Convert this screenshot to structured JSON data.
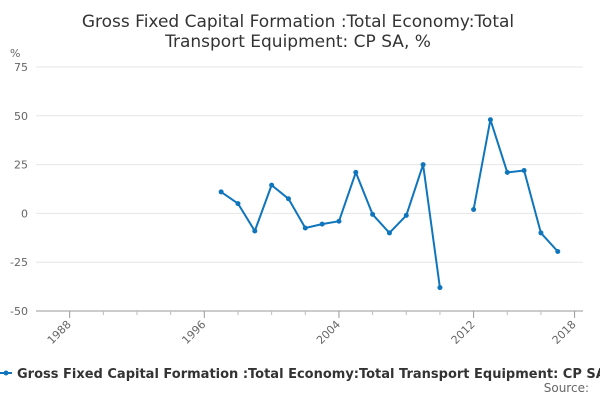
{
  "chart_data": {
    "type": "line",
    "title_lines": [
      "Gross Fixed Capital Formation :Total Economy:Total",
      "Transport Equipment: CP SA, %"
    ],
    "ylabel": "%",
    "xlabel": "",
    "xlim": [
      1986,
      2018.5
    ],
    "ylim": [
      -50,
      75
    ],
    "y_ticks": [
      75,
      50,
      25,
      0,
      -25,
      -50
    ],
    "y_tick_labels": [
      "75",
      "50",
      "25",
      "0",
      "-25",
      "-50"
    ],
    "x_ticks": [
      1988,
      1996,
      2004,
      2012,
      2018
    ],
    "x_tick_labels": [
      "1988",
      "1996",
      "2004",
      "2012",
      "2018"
    ],
    "x_minor_ticks": [
      1990,
      1992,
      1994,
      1998,
      2000,
      2002,
      2006,
      2008,
      2010,
      2014,
      2016
    ],
    "grid": true,
    "series": [
      {
        "name": "Gross Fixed Capital Formation :Total Economy:Total Transport Equipment: CP SA, %",
        "color": "#0f75bc",
        "points": [
          {
            "x": 1997,
            "y": 11
          },
          {
            "x": 1998,
            "y": 5
          },
          {
            "x": 1999,
            "y": -9
          },
          {
            "x": 2000,
            "y": 14.5
          },
          {
            "x": 2001,
            "y": 7.5
          },
          {
            "x": 2002,
            "y": -7.5
          },
          {
            "x": 2003,
            "y": -5.5
          },
          {
            "x": 2004,
            "y": -4
          },
          {
            "x": 2005,
            "y": 21
          },
          {
            "x": 2006,
            "y": -0.5
          },
          {
            "x": 2007,
            "y": -10
          },
          {
            "x": 2008,
            "y": -1
          },
          {
            "x": 2009,
            "y": 25
          },
          {
            "x": 2010,
            "y": -38
          },
          {
            "x": 2011,
            "y": null
          },
          {
            "x": 2012,
            "y": 2
          },
          {
            "x": 2013,
            "y": 48
          },
          {
            "x": 2014,
            "y": 21
          },
          {
            "x": 2015,
            "y": 22
          },
          {
            "x": 2016,
            "y": -10
          },
          {
            "x": 2017,
            "y": -19.5
          }
        ]
      }
    ],
    "legend": {
      "position": "bottom",
      "label": "Gross Fixed Capital Formation :Total Economy:Total Transport Equipment: CP SA, %"
    },
    "source_label": "Source:"
  }
}
